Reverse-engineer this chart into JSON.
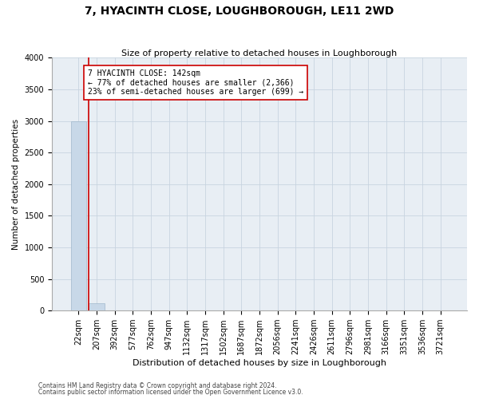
{
  "title": "7, HYACINTH CLOSE, LOUGHBOROUGH, LE11 2WD",
  "subtitle": "Size of property relative to detached houses in Loughborough",
  "xlabel": "Distribution of detached houses by size in Loughborough",
  "ylabel": "Number of detached properties",
  "categories": [
    "22sqm",
    "207sqm",
    "392sqm",
    "577sqm",
    "762sqm",
    "947sqm",
    "1132sqm",
    "1317sqm",
    "1502sqm",
    "1687sqm",
    "1872sqm",
    "2056sqm",
    "2241sqm",
    "2426sqm",
    "2611sqm",
    "2796sqm",
    "2981sqm",
    "3166sqm",
    "3351sqm",
    "3536sqm",
    "3721sqm"
  ],
  "bar_heights": [
    3000,
    120,
    5,
    3,
    2,
    2,
    1,
    1,
    1,
    1,
    1,
    1,
    1,
    1,
    1,
    1,
    1,
    1,
    1,
    1,
    0
  ],
  "bar_color": "#c8d8e8",
  "bar_edge_color": "#a0b8cc",
  "grid_color": "#c8d4e0",
  "bg_color": "#e8eef4",
  "property_line_x": 0.55,
  "property_line_color": "#cc0000",
  "annotation_text": "7 HYACINTH CLOSE: 142sqm\n← 77% of detached houses are smaller (2,366)\n23% of semi-detached houses are larger (699) →",
  "annotation_box_color": "#ffffff",
  "annotation_border_color": "#cc0000",
  "ylim": [
    0,
    4000
  ],
  "yticks": [
    0,
    500,
    1000,
    1500,
    2000,
    2500,
    3000,
    3500,
    4000
  ],
  "title_fontsize": 10,
  "subtitle_fontsize": 8,
  "xlabel_fontsize": 8,
  "ylabel_fontsize": 7.5,
  "tick_fontsize": 7,
  "annotation_fontsize": 7,
  "footnote1": "Contains HM Land Registry data © Crown copyright and database right 2024.",
  "footnote2": "Contains public sector information licensed under the Open Government Licence v3.0.",
  "footnote_fontsize": 5.5
}
